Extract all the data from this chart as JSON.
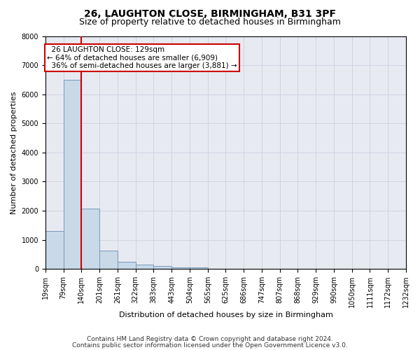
{
  "title_line1": "26, LAUGHTON CLOSE, BIRMINGHAM, B31 3PF",
  "title_line2": "Size of property relative to detached houses in Birmingham",
  "xlabel": "Distribution of detached houses by size in Birmingham",
  "ylabel": "Number of detached properties",
  "footnote_line1": "Contains HM Land Registry data © Crown copyright and database right 2024.",
  "footnote_line2": "Contains public sector information licensed under the Open Government Licence v3.0.",
  "property_label": "26 LAUGHTON CLOSE: 129sqm",
  "smaller_pct": 64,
  "smaller_count": 6909,
  "larger_pct": 36,
  "larger_count": 3881,
  "property_bin_index": 1,
  "tick_labels": [
    "19sqm",
    "79sqm",
    "140sqm",
    "201sqm",
    "261sqm",
    "322sqm",
    "383sqm",
    "443sqm",
    "504sqm",
    "565sqm",
    "625sqm",
    "686sqm",
    "747sqm",
    "807sqm",
    "868sqm",
    "929sqm",
    "990sqm",
    "1050sqm",
    "1111sqm",
    "1172sqm",
    "1232sqm"
  ],
  "bar_heights": [
    1310,
    6500,
    2080,
    630,
    250,
    140,
    100,
    60,
    60,
    0,
    0,
    0,
    0,
    0,
    0,
    0,
    0,
    0,
    0,
    0
  ],
  "bar_color": "#c9d9e8",
  "bar_edge_color": "#7799bb",
  "grid_color": "#d0d4e0",
  "background_color": "#e8eaf2",
  "property_line_color": "#cc0000",
  "annotation_box_edgecolor": "#cc0000",
  "ylim": [
    0,
    8000
  ],
  "yticks": [
    0,
    1000,
    2000,
    3000,
    4000,
    5000,
    6000,
    7000,
    8000
  ],
  "title1_fontsize": 10,
  "title2_fontsize": 9,
  "ylabel_fontsize": 8,
  "xlabel_fontsize": 8,
  "tick_fontsize": 7,
  "annot_fontsize": 7.5,
  "footnote_fontsize": 6.5
}
